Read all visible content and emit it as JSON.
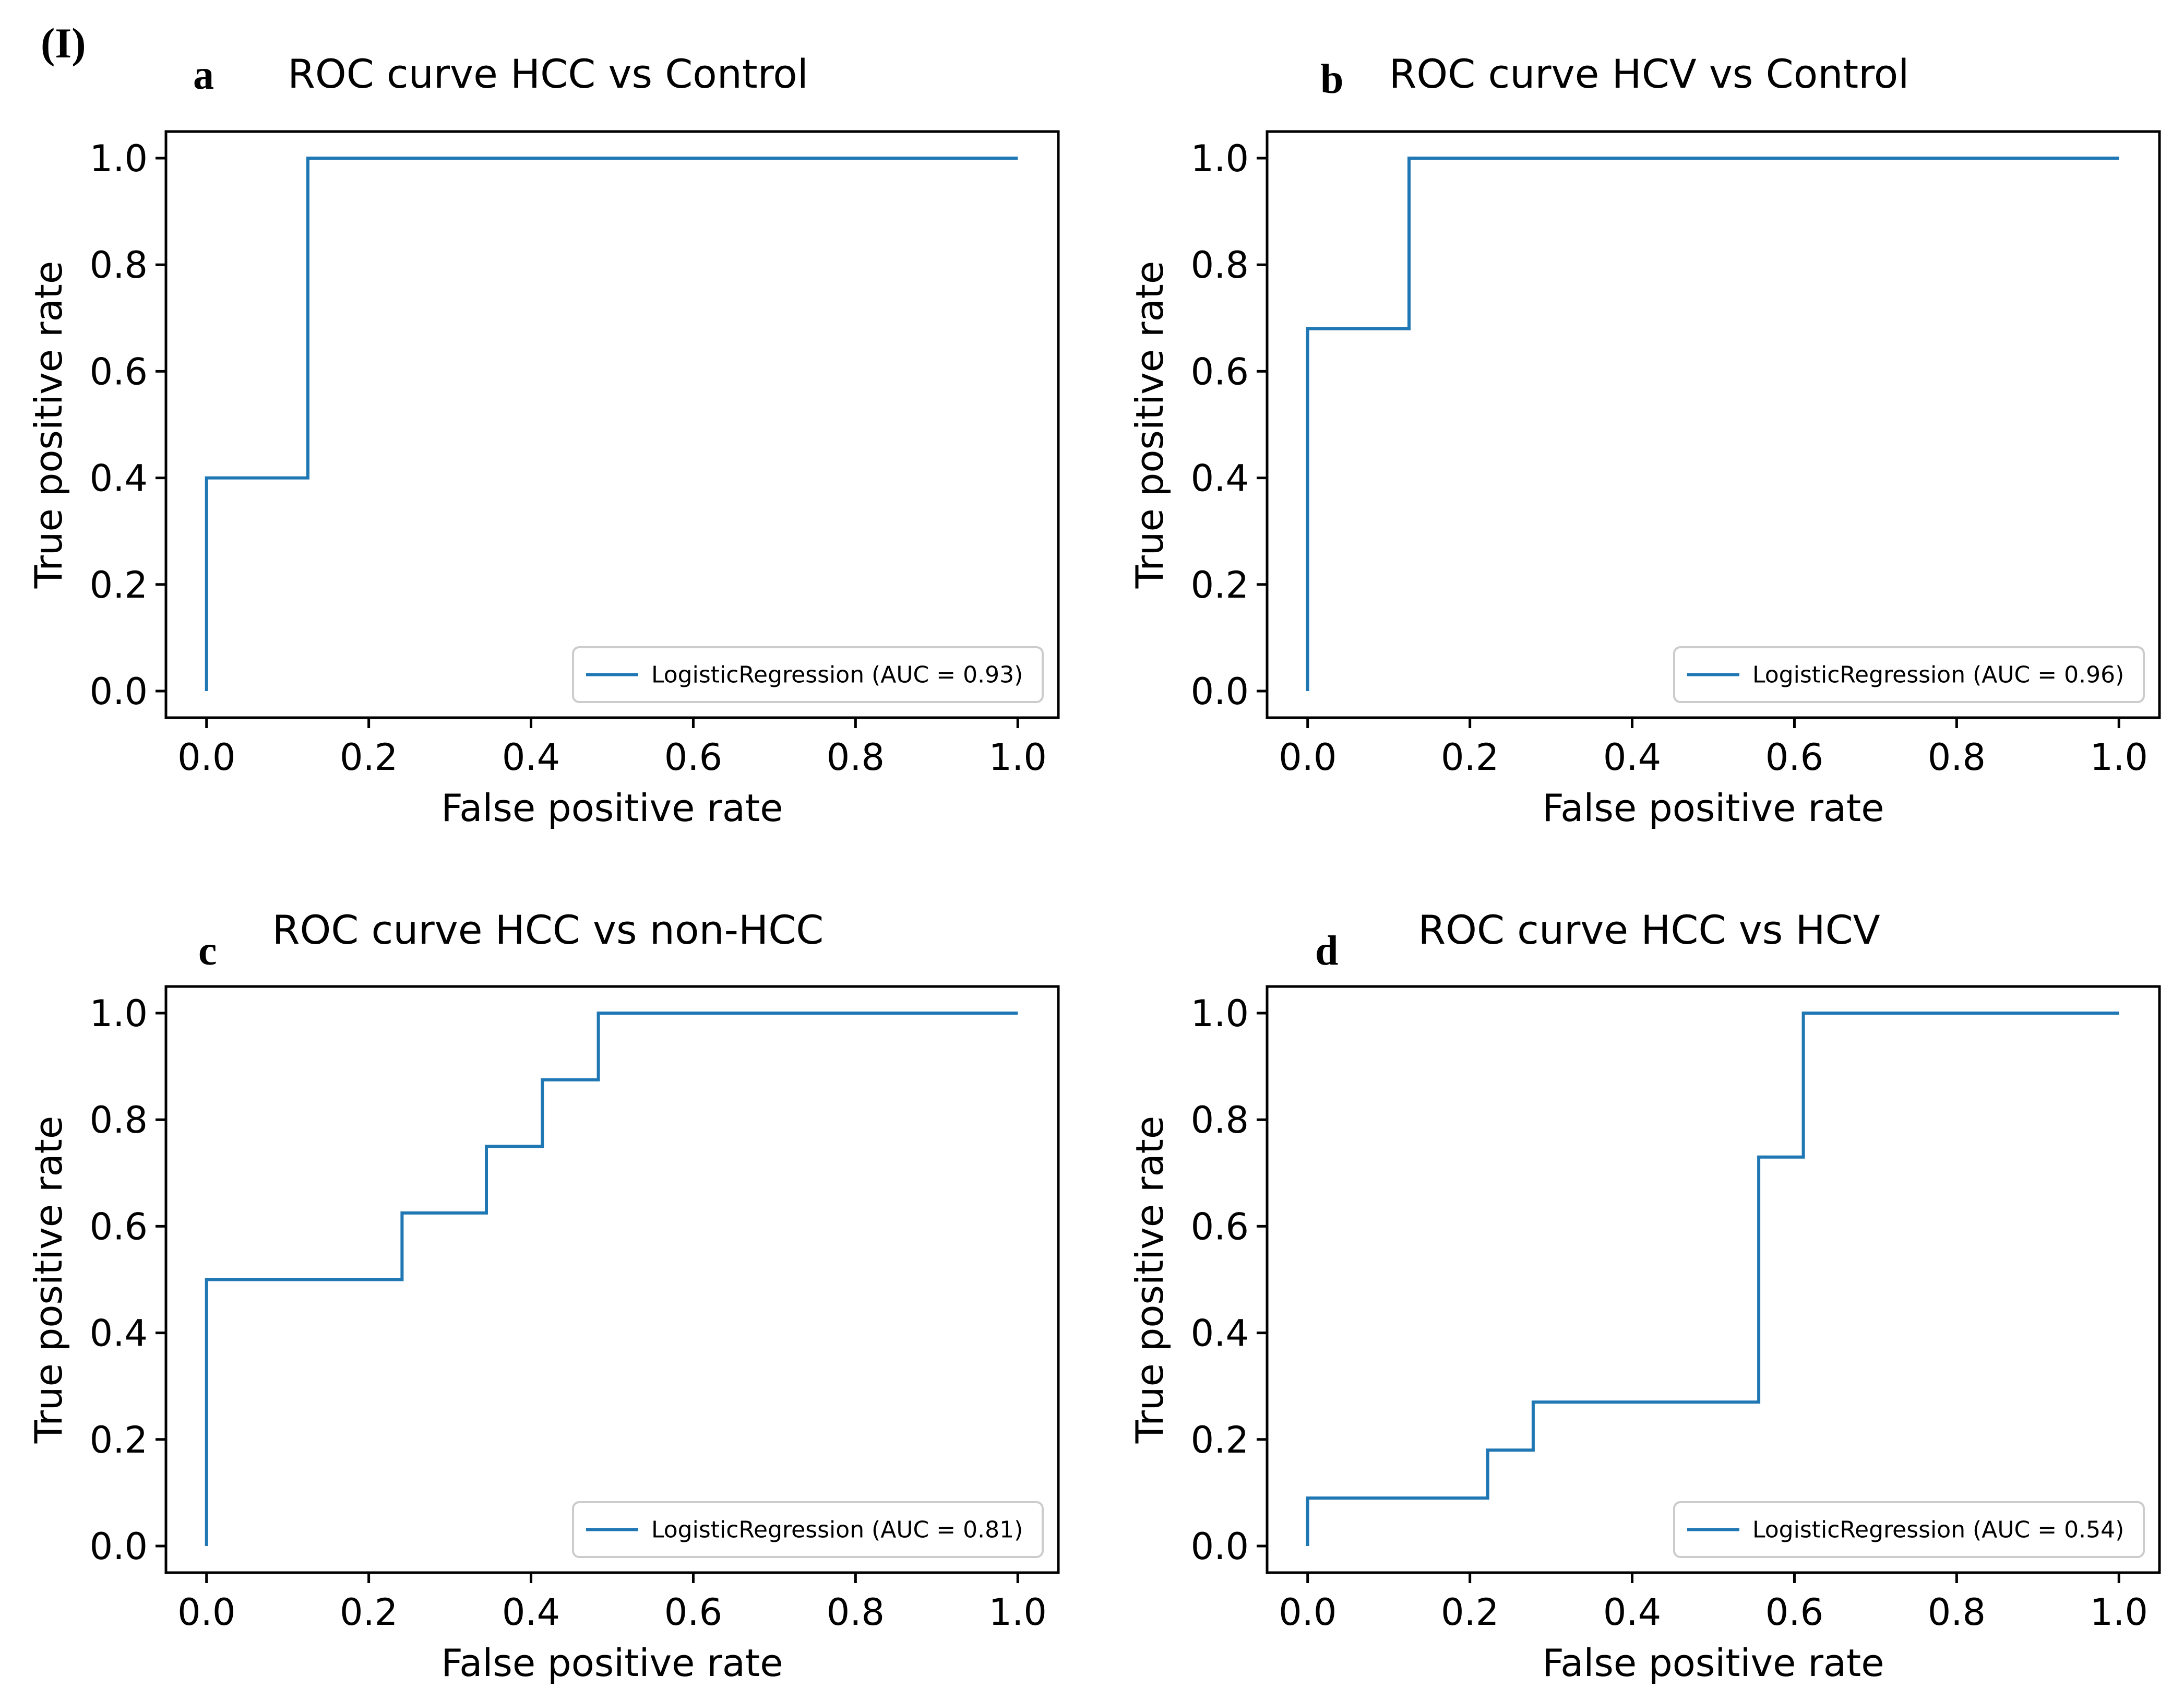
{
  "figure_label": "(I)",
  "colors": {
    "line": "#1f77b4",
    "axes": "#000000",
    "legend_border": "#cccccc"
  },
  "chart_data": [
    {
      "panel": "a",
      "type": "line",
      "title": "ROC curve HCC vs Control",
      "xlabel": "False positive rate",
      "ylabel": "True positive rate",
      "xlim": [
        -0.05,
        1.05
      ],
      "ylim": [
        -0.05,
        1.05
      ],
      "xticks": [
        "0.0",
        "0.2",
        "0.4",
        "0.6",
        "0.8",
        "1.0"
      ],
      "yticks": [
        "0.0",
        "0.2",
        "0.4",
        "0.6",
        "0.8",
        "1.0"
      ],
      "grid": false,
      "legend_position": "lower-right",
      "series": [
        {
          "name": "LogisticRegression (AUC = 0.93)",
          "x": [
            0,
            0,
            0.125,
            0.125,
            1.0
          ],
          "y": [
            0,
            0.4,
            0.4,
            1.0,
            1.0
          ]
        }
      ]
    },
    {
      "panel": "b",
      "type": "line",
      "title": "ROC curve HCV vs Control",
      "xlabel": "False positive rate",
      "ylabel": "True positive rate",
      "xlim": [
        -0.05,
        1.05
      ],
      "ylim": [
        -0.05,
        1.05
      ],
      "xticks": [
        "0.0",
        "0.2",
        "0.4",
        "0.6",
        "0.8",
        "1.0"
      ],
      "yticks": [
        "0.0",
        "0.2",
        "0.4",
        "0.6",
        "0.8",
        "1.0"
      ],
      "grid": false,
      "legend_position": "lower-right",
      "series": [
        {
          "name": "LogisticRegression (AUC = 0.96)",
          "x": [
            0,
            0,
            0.125,
            0.125,
            1.0
          ],
          "y": [
            0,
            0.68,
            0.68,
            1.0,
            1.0
          ]
        }
      ]
    },
    {
      "panel": "c",
      "type": "line",
      "title": "ROC curve HCC vs non-HCC",
      "xlabel": "False positive rate",
      "ylabel": "True positive rate",
      "xlim": [
        -0.05,
        1.05
      ],
      "ylim": [
        -0.05,
        1.05
      ],
      "xticks": [
        "0.0",
        "0.2",
        "0.4",
        "0.6",
        "0.8",
        "1.0"
      ],
      "yticks": [
        "0.0",
        "0.2",
        "0.4",
        "0.6",
        "0.8",
        "1.0"
      ],
      "grid": false,
      "legend_position": "lower-right",
      "series": [
        {
          "name": "LogisticRegression (AUC = 0.81)",
          "x": [
            0,
            0,
            0.241,
            0.241,
            0.345,
            0.345,
            0.414,
            0.414,
            0.483,
            0.483,
            1.0
          ],
          "y": [
            0,
            0.5,
            0.5,
            0.625,
            0.625,
            0.75,
            0.75,
            0.875,
            0.875,
            1.0,
            1.0
          ]
        }
      ]
    },
    {
      "panel": "d",
      "type": "line",
      "title": "ROC curve HCC vs HCV",
      "xlabel": "False positive rate",
      "ylabel": "True positive rate",
      "xlim": [
        -0.05,
        1.05
      ],
      "ylim": [
        -0.05,
        1.05
      ],
      "xticks": [
        "0.0",
        "0.2",
        "0.4",
        "0.6",
        "0.8",
        "1.0"
      ],
      "yticks": [
        "0.0",
        "0.2",
        "0.4",
        "0.6",
        "0.8",
        "1.0"
      ],
      "grid": false,
      "legend_position": "lower-right",
      "series": [
        {
          "name": "LogisticRegression (AUC = 0.54)",
          "x": [
            0,
            0,
            0.222,
            0.222,
            0.278,
            0.278,
            0.556,
            0.556,
            0.611,
            0.611,
            1.0
          ],
          "y": [
            0,
            0.09,
            0.09,
            0.18,
            0.18,
            0.27,
            0.27,
            0.73,
            0.73,
            1.0,
            1.0
          ]
        }
      ]
    }
  ]
}
